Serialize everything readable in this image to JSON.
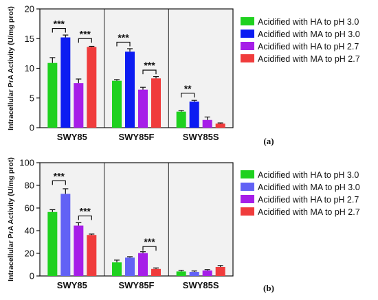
{
  "chart_data": [
    {
      "type": "bar",
      "panel_label": "(a)",
      "ylabel": "Intracellular PrA Activity (U/mg prot)",
      "ylim": [
        0,
        20
      ],
      "yticks": [
        0,
        5,
        10,
        15,
        20
      ],
      "grid": false,
      "legend_position": "right",
      "groups": [
        "SWY85",
        "SWY85F",
        "SWY85S"
      ],
      "series": [
        {
          "name": "Acidified with HA to pH 3.0",
          "color": "#1fd11f",
          "values": [
            10.9,
            7.9,
            2.7
          ],
          "errors": [
            0.9,
            0.2,
            0.2
          ]
        },
        {
          "name": "Acidified with MA to pH 3.0",
          "color": "#0c1cf2",
          "values": [
            15.2,
            12.8,
            4.4
          ],
          "errors": [
            0.4,
            0.5,
            0.2
          ]
        },
        {
          "name": "Acidified with HA to pH 2.7",
          "color": "#a61ee8",
          "values": [
            7.5,
            6.4,
            1.3
          ],
          "errors": [
            0.7,
            0.4,
            0.5
          ]
        },
        {
          "name": "Acidified with MA to pH 2.7",
          "color": "#f03c3c",
          "values": [
            13.6,
            8.3,
            0.7
          ],
          "errors": [
            0.1,
            0.3,
            0.1
          ]
        }
      ],
      "annotations": [
        {
          "group": 0,
          "from": 0,
          "to": 1,
          "label": "***",
          "y": 16.7
        },
        {
          "group": 0,
          "from": 2,
          "to": 3,
          "label": "***",
          "y": 15.0
        },
        {
          "group": 1,
          "from": 0,
          "to": 1,
          "label": "***",
          "y": 14.4
        },
        {
          "group": 1,
          "from": 2,
          "to": 3,
          "label": "***",
          "y": 9.7
        },
        {
          "group": 2,
          "from": 0,
          "to": 1,
          "label": "**",
          "y": 5.8
        }
      ]
    },
    {
      "type": "bar",
      "panel_label": "(b)",
      "ylabel": "Intracellular PrA Activity (U/mg prot)",
      "ylim": [
        0,
        100
      ],
      "yticks": [
        0,
        20,
        40,
        60,
        80,
        100
      ],
      "grid": false,
      "legend_position": "right",
      "groups": [
        "SWY85",
        "SWY85F",
        "SWY85S"
      ],
      "series": [
        {
          "name": "Acidified with HA to pH 3.0",
          "color": "#1fd11f",
          "values": [
            56.5,
            12.0,
            4.0
          ],
          "errors": [
            2.0,
            2.0,
            1.0
          ]
        },
        {
          "name": "Acidified with MA to pH 3.0",
          "color": "#6262f5",
          "values": [
            72.5,
            16.2,
            3.6
          ],
          "errors": [
            4.5,
            0.8,
            0.8
          ]
        },
        {
          "name": "Acidified with HA to pH 2.7",
          "color": "#a61ee8",
          "values": [
            44.5,
            20.2,
            4.8
          ],
          "errors": [
            2.5,
            1.2,
            0.8
          ]
        },
        {
          "name": "Acidified with MA to pH 2.7",
          "color": "#f03c3c",
          "values": [
            36.2,
            6.2,
            7.9
          ],
          "errors": [
            0.8,
            0.9,
            1.3
          ]
        }
      ],
      "annotations": [
        {
          "group": 0,
          "from": 0,
          "to": 1,
          "label": "***",
          "y": 84
        },
        {
          "group": 0,
          "from": 2,
          "to": 3,
          "label": "***",
          "y": 53
        },
        {
          "group": 1,
          "from": 2,
          "to": 3,
          "label": "***",
          "y": 26
        }
      ]
    }
  ]
}
